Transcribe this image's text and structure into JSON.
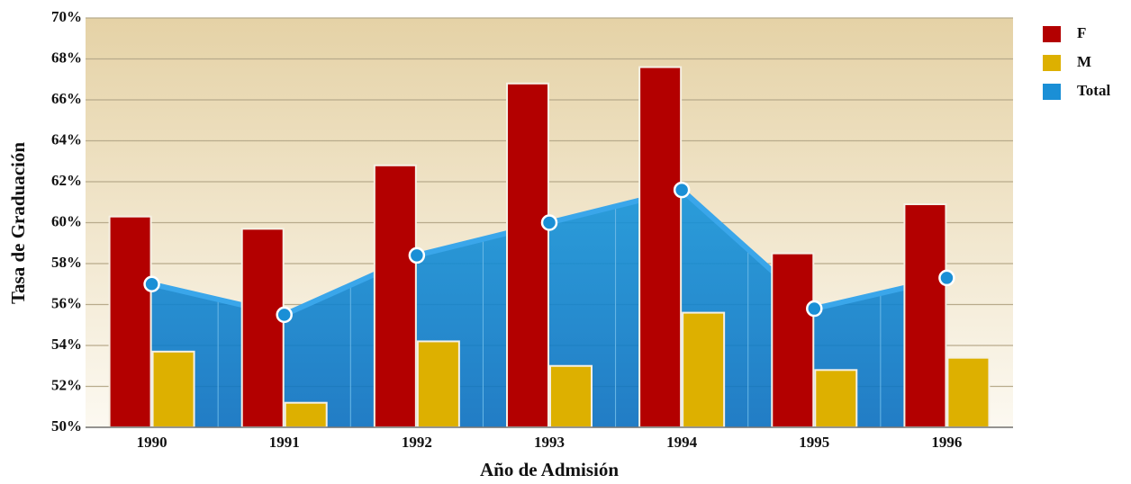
{
  "chart_data": {
    "type": "bar",
    "x_label": "Año de Admisión",
    "y_label": "Tasa de Graduación",
    "categories": [
      "1990",
      "1991",
      "1992",
      "1993",
      "1994",
      "1995",
      "1996"
    ],
    "series": [
      {
        "name": "F",
        "color": "#b30000",
        "values": [
          60.3,
          59.7,
          62.8,
          66.8,
          67.6,
          58.5,
          60.9
        ]
      },
      {
        "name": "M",
        "color": "#ddb000",
        "values": [
          53.7,
          51.2,
          54.2,
          53.0,
          55.6,
          52.8,
          53.4
        ]
      },
      {
        "name": "Total",
        "type": "area",
        "color": "#1a8fd6",
        "values": [
          57.0,
          55.5,
          58.4,
          60.0,
          61.6,
          55.8,
          57.3
        ]
      }
    ],
    "ylim": [
      50,
      70
    ],
    "yticks": [
      {
        "value": 50,
        "label": "50%"
      },
      {
        "value": 52,
        "label": "52%"
      },
      {
        "value": 54,
        "label": "54%"
      },
      {
        "value": 56,
        "label": "56%"
      },
      {
        "value": 58,
        "label": "58%"
      },
      {
        "value": 60,
        "label": "60%"
      },
      {
        "value": 62,
        "label": "62%"
      },
      {
        "value": 64,
        "label": "64%"
      },
      {
        "value": 66,
        "label": "66%"
      },
      {
        "value": 68,
        "label": "68%"
      },
      {
        "value": 70,
        "label": "70%"
      }
    ],
    "grid": true,
    "legend": "top-right"
  }
}
